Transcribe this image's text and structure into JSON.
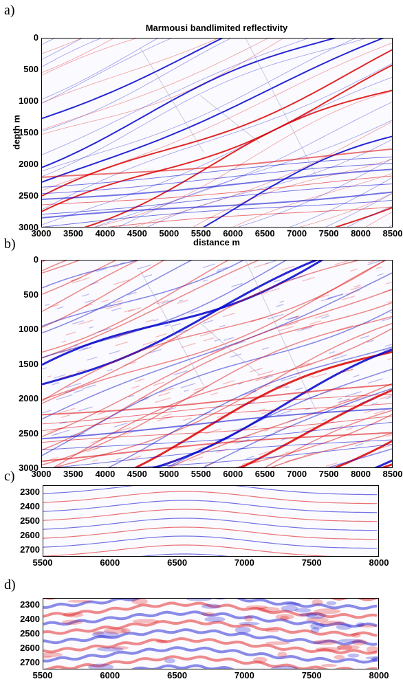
{
  "chart_data": [
    {
      "panel": "a)",
      "type": "heatmap",
      "title": "Marmousi bandlimited reflectivity",
      "xlabel": "distance m",
      "ylabel": "depth m",
      "xlim": [
        3000,
        8500
      ],
      "ylim": [
        3000,
        0
      ],
      "xticks": [
        "3000",
        "3500",
        "4000",
        "4500",
        "5000",
        "5500",
        "6000",
        "6500",
        "7000",
        "7500",
        "8000",
        "8500"
      ],
      "yticks": [
        "0",
        "500",
        "1000",
        "1500",
        "2000",
        "2500",
        "3000"
      ],
      "colormap": [
        "#0000cc",
        "#ffffff",
        "#dd0000"
      ]
    },
    {
      "panel": "b)",
      "type": "heatmap",
      "title": "",
      "xlabel": "",
      "ylabel": "",
      "xlim": [
        3000,
        8500
      ],
      "ylim": [
        3000,
        0
      ],
      "xticks": [
        "3000",
        "3500",
        "4000",
        "4500",
        "5000",
        "5500",
        "6000",
        "6500",
        "7000",
        "7500",
        "8000",
        "8500"
      ],
      "yticks": [
        "0",
        "500",
        "1000",
        "1500",
        "2000",
        "2500",
        "3000"
      ],
      "colormap": [
        "#0000cc",
        "#ffffff",
        "#dd0000"
      ]
    },
    {
      "panel": "c)",
      "type": "heatmap",
      "title": "",
      "xlabel": "",
      "ylabel": "",
      "xlim": [
        5500,
        8000
      ],
      "ylim": [
        2750,
        2250
      ],
      "xticks": [
        "5500",
        "6000",
        "6500",
        "7000",
        "7500",
        "8000"
      ],
      "yticks": [
        "2300",
        "2400",
        "2500",
        "2600",
        "2700"
      ],
      "colormap": [
        "#0000cc",
        "#ffffff",
        "#dd0000"
      ]
    },
    {
      "panel": "d)",
      "type": "heatmap",
      "title": "",
      "xlabel": "",
      "ylabel": "",
      "xlim": [
        5500,
        8000
      ],
      "ylim": [
        2750,
        2250
      ],
      "xticks": [
        "5500",
        "6000",
        "6500",
        "7000",
        "7500",
        "8000"
      ],
      "yticks": [
        "2300",
        "2400",
        "2500",
        "2600",
        "2700"
      ],
      "colormap": [
        "#0000cc",
        "#ffffff",
        "#dd0000"
      ]
    }
  ]
}
